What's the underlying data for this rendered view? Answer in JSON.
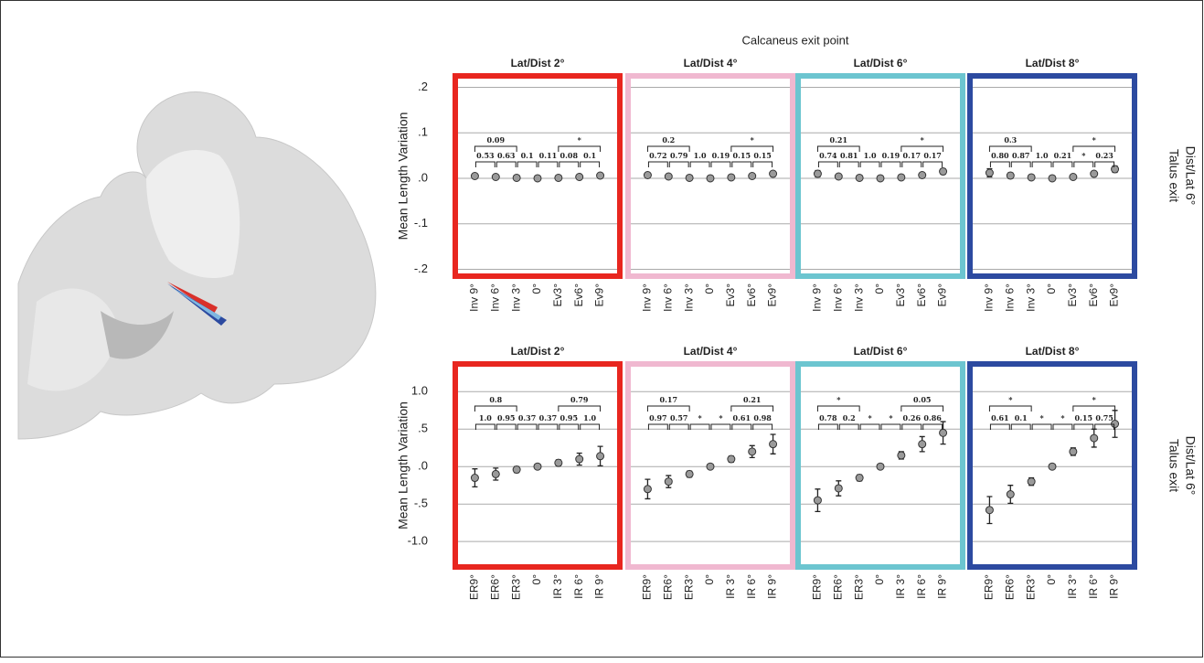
{
  "figure_title": "Calcaneus exit point",
  "row_labels": [
    [
      "Talus exit",
      "Dist/Lat 6°"
    ],
    [
      "Talus exit",
      "Dist/Lat 6°"
    ]
  ],
  "chart_data": [
    {
      "type": "errorbar",
      "title": "Lat/Dist 2°",
      "y_label": "Mean Length Variation",
      "ytick_labels": true,
      "frame_color": "#e8261f",
      "marker_color": "#9a9a9a",
      "categories": [
        "Inv 9°",
        "Inv 6°",
        "Inv 3°",
        "0°",
        "Ev3°",
        "Ev6°",
        "Ev9°"
      ],
      "values": [
        0.005,
        0.003,
        0.001,
        0,
        0.001,
        0.003,
        0.006
      ],
      "errors": [
        0.003,
        0.003,
        0.002,
        0,
        0.002,
        0.003,
        0.003
      ],
      "ylim": [
        -0.215,
        0.225
      ],
      "yticks": [
        {
          "value": 0.2,
          "label": ".2"
        },
        {
          "value": 0.1,
          "label": ".1"
        },
        {
          "value": 0,
          "label": ".0"
        },
        {
          "value": -0.1,
          "label": "-.1"
        },
        {
          "value": -0.2,
          "label": "-.2"
        }
      ],
      "adjacent_tests": [
        "0.53",
        "0.63",
        "0.1",
        "0.11",
        "0.08",
        "0.1"
      ],
      "group_tests": [
        "0.09",
        "*"
      ]
    },
    {
      "type": "errorbar",
      "title": "Lat/Dist 4°",
      "ytick_labels": false,
      "frame_color": "#f0b8d0",
      "marker_color": "#9a9a9a",
      "categories": [
        "Inv 9°",
        "Inv 6°",
        "Inv 3°",
        "0°",
        "Ev3°",
        "Ev6°",
        "Ev9°"
      ],
      "values": [
        0.007,
        0.004,
        0.001,
        0,
        0.002,
        0.005,
        0.01
      ],
      "errors": [
        0.004,
        0.003,
        0.002,
        0,
        0.002,
        0.003,
        0.004
      ],
      "ylim": [
        -0.215,
        0.225
      ],
      "yticks": [
        {
          "value": 0.2,
          "label": ".2"
        },
        {
          "value": 0.1,
          "label": ".1"
        },
        {
          "value": 0,
          "label": ".0"
        },
        {
          "value": -0.1,
          "label": "-.1"
        },
        {
          "value": -0.2,
          "label": "-.2"
        }
      ],
      "adjacent_tests": [
        "0.72",
        "0.79",
        "1.0",
        "0.19",
        "0.15",
        "0.15"
      ],
      "group_tests": [
        "0.2",
        "*"
      ]
    },
    {
      "type": "errorbar",
      "title": "Lat/Dist 6°",
      "ytick_labels": false,
      "frame_color": "#6cc5d0",
      "marker_color": "#9a9a9a",
      "categories": [
        "Inv 9°",
        "Inv 6°",
        "Inv 3°",
        "0°",
        "Ev3°",
        "Ev6°",
        "Ev9°"
      ],
      "values": [
        0.01,
        0.004,
        0.001,
        0,
        0.002,
        0.007,
        0.015
      ],
      "errors": [
        0.007,
        0.004,
        0.002,
        0,
        0.002,
        0.004,
        0.006
      ],
      "ylim": [
        -0.215,
        0.225
      ],
      "yticks": [
        {
          "value": 0.2,
          "label": ".2"
        },
        {
          "value": 0.1,
          "label": ".1"
        },
        {
          "value": 0,
          "label": ".0"
        },
        {
          "value": -0.1,
          "label": "-.1"
        },
        {
          "value": -0.2,
          "label": "-.2"
        }
      ],
      "adjacent_tests": [
        "0.74",
        "0.81",
        "1.0",
        "0.19",
        "0.17",
        "0.17"
      ],
      "group_tests": [
        "0.21",
        "*"
      ]
    },
    {
      "type": "errorbar",
      "title": "Lat/Dist 8°",
      "ytick_labels": false,
      "frame_color": "#2c4aa0",
      "marker_color": "#9a9a9a",
      "categories": [
        "Inv 9°",
        "Inv 6°",
        "Inv 3°",
        "0°",
        "Ev3°",
        "Ev6°",
        "Ev9°"
      ],
      "values": [
        0.012,
        0.006,
        0.002,
        0,
        0.003,
        0.01,
        0.02
      ],
      "errors": [
        0.009,
        0.006,
        0.003,
        0,
        0.003,
        0.005,
        0.007
      ],
      "ylim": [
        -0.215,
        0.225
      ],
      "yticks": [
        {
          "value": 0.2,
          "label": ".2"
        },
        {
          "value": 0.1,
          "label": ".1"
        },
        {
          "value": 0,
          "label": ".0"
        },
        {
          "value": -0.1,
          "label": "-.1"
        },
        {
          "value": -0.2,
          "label": "-.2"
        }
      ],
      "adjacent_tests": [
        "0.80",
        "0.87",
        "1.0",
        "0.21",
        "*",
        "0.23"
      ],
      "group_tests": [
        "0.3",
        "*"
      ]
    },
    {
      "type": "errorbar",
      "title": "Lat/Dist 2°",
      "y_label": "Mean Length Variation",
      "ytick_labels": true,
      "frame_color": "#e8261f",
      "marker_color": "#9a9a9a",
      "categories": [
        "ER9°",
        "ER6°",
        "ER3°",
        "0°",
        "IR 3°",
        "IR 6°",
        "IR 9°"
      ],
      "values": [
        -0.15,
        -0.1,
        -0.04,
        0,
        0.05,
        0.1,
        0.14
      ],
      "errors": [
        0.12,
        0.08,
        0.04,
        0,
        0.04,
        0.08,
        0.13
      ],
      "ylim": [
        -1.34,
        1.37
      ],
      "yticks": [
        {
          "value": 1,
          "label": "1.0"
        },
        {
          "value": 0.5,
          "label": ".5"
        },
        {
          "value": 0,
          "label": ".0"
        },
        {
          "value": -0.5,
          "label": "-.5"
        },
        {
          "value": -1,
          "label": "-1.0"
        }
      ],
      "adjacent_tests": [
        "1.0",
        "0.95",
        "0.37",
        "0.37",
        "0.95",
        "1.0"
      ],
      "group_tests": [
        "0.8",
        "0.79"
      ]
    },
    {
      "type": "errorbar",
      "title": "Lat/Dist 4°",
      "ytick_labels": false,
      "frame_color": "#f0b8d0",
      "marker_color": "#9a9a9a",
      "categories": [
        "ER9°",
        "ER6°",
        "ER3°",
        "0°",
        "IR 3°",
        "IR 6°",
        "IR 9°"
      ],
      "values": [
        -0.3,
        -0.2,
        -0.1,
        0,
        0.1,
        0.2,
        0.3
      ],
      "errors": [
        0.13,
        0.08,
        0.04,
        0,
        0.04,
        0.08,
        0.13
      ],
      "ylim": [
        -1.34,
        1.37
      ],
      "yticks": [
        {
          "value": 1,
          "label": "1.0"
        },
        {
          "value": 0.5,
          "label": ".5"
        },
        {
          "value": 0,
          "label": ".0"
        },
        {
          "value": -0.5,
          "label": "-.5"
        },
        {
          "value": -1,
          "label": "-1.0"
        }
      ],
      "adjacent_tests": [
        "0.97",
        "0.57",
        "*",
        "*",
        "0.61",
        "0.98"
      ],
      "group_tests": [
        "0.17",
        "0.21"
      ]
    },
    {
      "type": "errorbar",
      "title": "Lat/Dist 6°",
      "ytick_labels": false,
      "frame_color": "#6cc5d0",
      "marker_color": "#9a9a9a",
      "categories": [
        "ER9°",
        "ER6°",
        "ER3°",
        "0°",
        "IR 3°",
        "IR 6°",
        "IR 9°"
      ],
      "values": [
        -0.45,
        -0.29,
        -0.15,
        0,
        0.15,
        0.3,
        0.45
      ],
      "errors": [
        0.15,
        0.1,
        0.04,
        0,
        0.05,
        0.1,
        0.15
      ],
      "ylim": [
        -1.34,
        1.37
      ],
      "yticks": [
        {
          "value": 1,
          "label": "1.0"
        },
        {
          "value": 0.5,
          "label": ".5"
        },
        {
          "value": 0,
          "label": ".0"
        },
        {
          "value": -0.5,
          "label": "-.5"
        },
        {
          "value": -1,
          "label": "-1.0"
        }
      ],
      "adjacent_tests": [
        "0.78",
        "0.2",
        "*",
        "*",
        "0.26",
        "0.86"
      ],
      "group_tests": [
        "*",
        "0.05"
      ]
    },
    {
      "type": "errorbar",
      "title": "Lat/Dist 8°",
      "ytick_labels": false,
      "frame_color": "#2c4aa0",
      "marker_color": "#9a9a9a",
      "categories": [
        "ER9°",
        "ER6°",
        "ER3°",
        "0°",
        "IR 3°",
        "IR 6°",
        "IR 9°"
      ],
      "values": [
        -0.58,
        -0.37,
        -0.2,
        0,
        0.2,
        0.38,
        0.57
      ],
      "errors": [
        0.18,
        0.12,
        0.05,
        0,
        0.05,
        0.12,
        0.18
      ],
      "ylim": [
        -1.34,
        1.37
      ],
      "yticks": [
        {
          "value": 1,
          "label": "1.0"
        },
        {
          "value": 0.5,
          "label": ".5"
        },
        {
          "value": 0,
          "label": ".0"
        },
        {
          "value": -0.5,
          "label": "-.5"
        },
        {
          "value": -1,
          "label": "-1.0"
        }
      ],
      "adjacent_tests": [
        "0.61",
        "0.1",
        "*",
        "*",
        "0.15",
        "0.75"
      ],
      "group_tests": [
        "*",
        "*"
      ]
    }
  ]
}
